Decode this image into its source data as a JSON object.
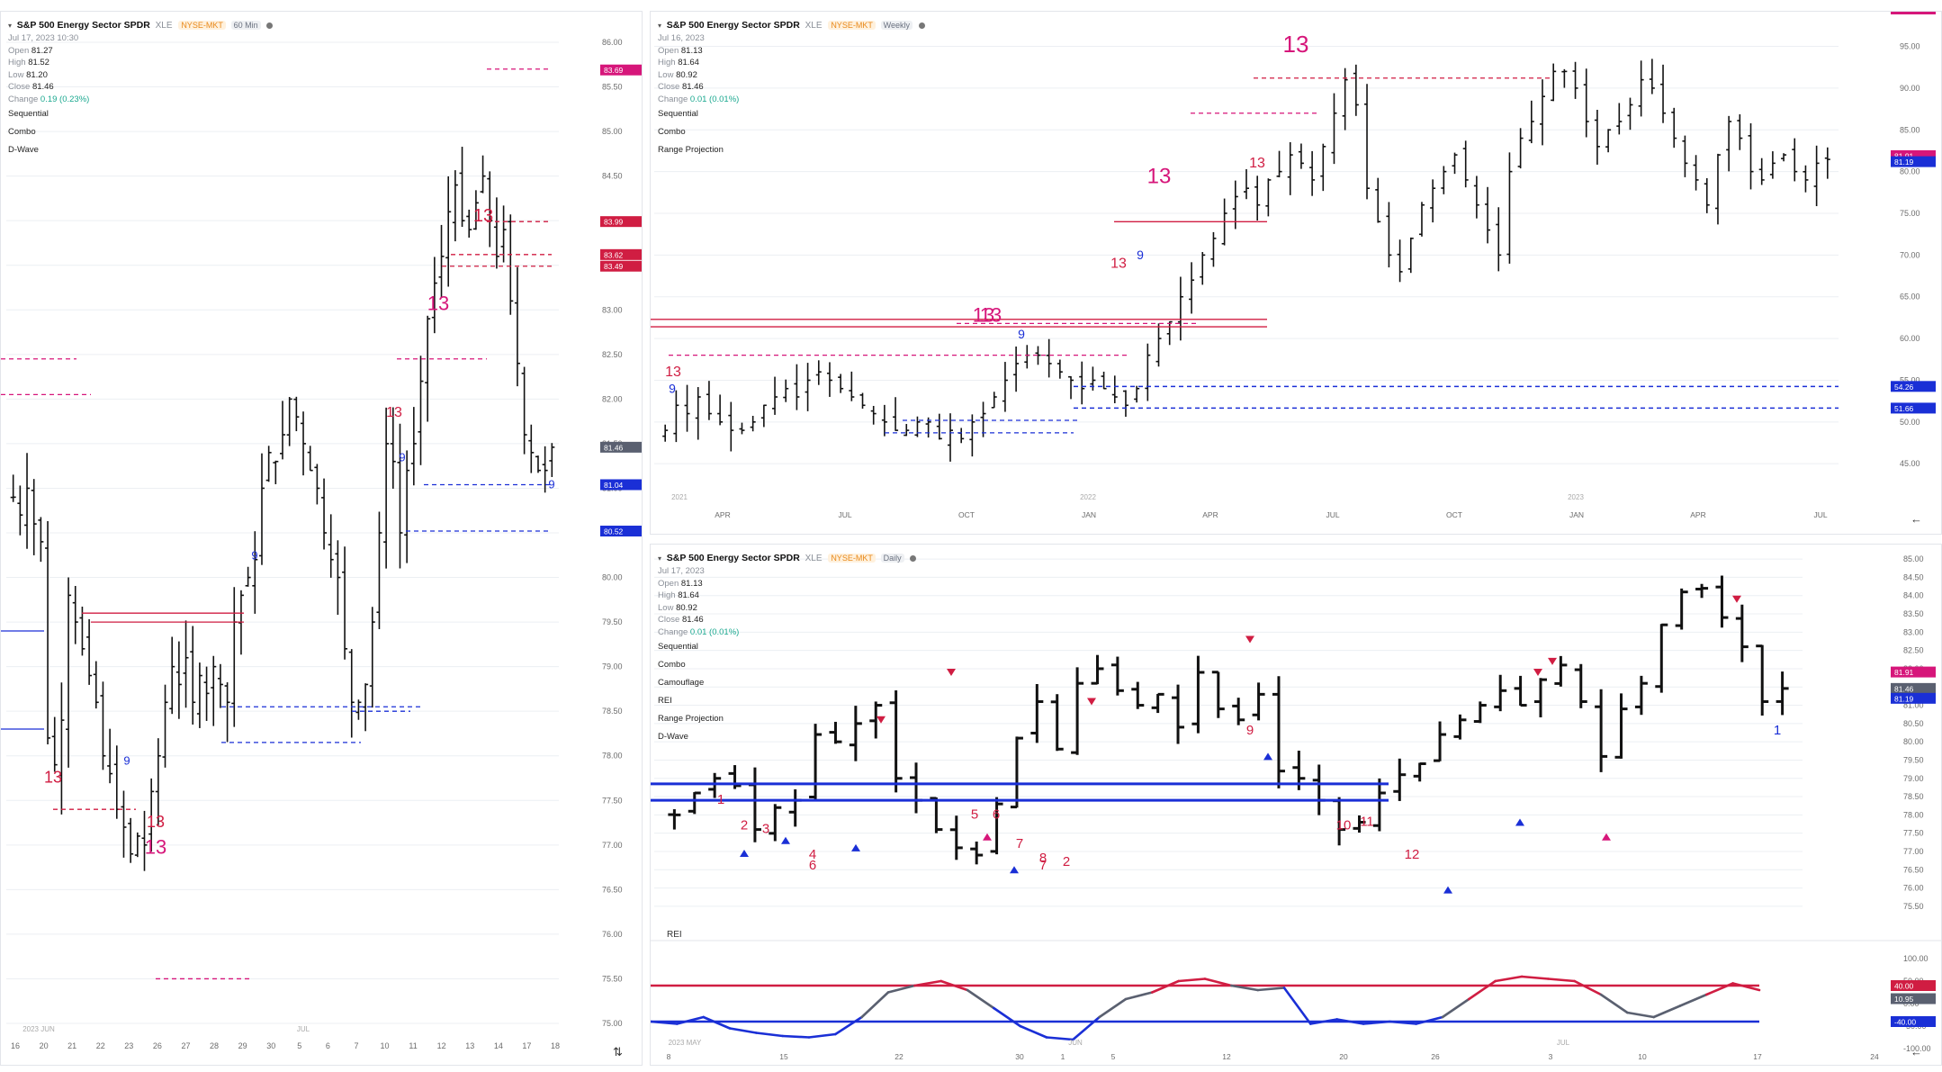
{
  "colors": {
    "bar": "#111111",
    "magenta": "#d6167a",
    "crimson": "#d01d42",
    "blue": "#1a2fd6",
    "gray": "#5a6070",
    "grid": "#eceff3",
    "axis_text": "#6b6b6b"
  },
  "pane_left": {
    "title": "S&P 500 Energy Sector SPDR",
    "ticker": "XLE",
    "exchange": "NYSE-MKT",
    "interval": "60 Min",
    "date": "Jul 17, 2023 10:30",
    "ohlc": [
      {
        "label": "Open",
        "value": "81.27"
      },
      {
        "label": "High",
        "value": "81.52"
      },
      {
        "label": "Low",
        "value": "81.20"
      },
      {
        "label": "Close",
        "value": "81.46"
      }
    ],
    "change_label": "Change",
    "change": "0.19 (0.23%)",
    "indicators": [
      "Sequential",
      "Combo",
      "D-Wave"
    ],
    "y_ticks": [
      "86.00",
      "85.50",
      "85.00",
      "84.50",
      "84.00",
      "83.50",
      "83.00",
      "82.50",
      "82.00",
      "81.50",
      "81.00",
      "80.50",
      "80.00",
      "79.50",
      "79.00",
      "78.50",
      "78.00",
      "77.50",
      "77.00",
      "76.50",
      "76.00",
      "75.50",
      "75.00"
    ],
    "x_ticks": [
      "16",
      "20",
      "21",
      "22",
      "23",
      "26",
      "27",
      "28",
      "29",
      "30",
      "5",
      "6",
      "7",
      "10",
      "11",
      "12",
      "13",
      "14",
      "17",
      "18"
    ],
    "period_labels": [
      "2023 JUN",
      "JUL"
    ],
    "price_tags": [
      {
        "value": "83.69",
        "color": "#d6167a"
      },
      {
        "value": "83.99",
        "color": "#d01d42"
      },
      {
        "value": "83.62",
        "color": "#d01d42"
      },
      {
        "value": "83.49",
        "color": "#d01d42"
      },
      {
        "value": "81.46",
        "color": "#5a6070"
      },
      {
        "value": "81.04",
        "color": "#1a2fd6"
      },
      {
        "value": "80.52",
        "color": "#1a2fd6"
      }
    ],
    "big_labels": [
      "13",
      "13",
      "13",
      "13",
      "13",
      "13"
    ],
    "nine_labels": [
      "9",
      "9",
      "9",
      "9"
    ],
    "sort_icon": "⇅"
  },
  "pane_weekly": {
    "title": "S&P 500 Energy Sector SPDR",
    "ticker": "XLE",
    "exchange": "NYSE-MKT",
    "interval": "Weekly",
    "date": "Jul 16, 2023",
    "ohlc": [
      {
        "label": "Open",
        "value": "81.13"
      },
      {
        "label": "High",
        "value": "81.64"
      },
      {
        "label": "Low",
        "value": "80.92"
      },
      {
        "label": "Close",
        "value": "81.46"
      }
    ],
    "change_label": "Change",
    "change": "0.01 (0.01%)",
    "indicators": [
      "Sequential",
      "Combo",
      "Range Projection"
    ],
    "y_ticks": [
      "95.00",
      "90.00",
      "85.00",
      "80.00",
      "75.00",
      "70.00",
      "65.00",
      "60.00",
      "55.00",
      "50.00",
      "45.00"
    ],
    "x_ticks": [
      "APR",
      "JUL",
      "OCT",
      "JAN",
      "APR",
      "JUL",
      "OCT",
      "JAN",
      "APR",
      "JUL"
    ],
    "year_labels": [
      "2021",
      "2022",
      "2023"
    ],
    "price_tags": [
      {
        "value": "81.91",
        "color": "#d6167a"
      },
      {
        "value": "81.19",
        "color": "#1a2fd6"
      },
      {
        "value": "54.26",
        "color": "#1a2fd6"
      },
      {
        "value": "51.66",
        "color": "#1a2fd6"
      }
    ],
    "big_labels": [
      "13",
      "13",
      "13",
      "13",
      "13",
      "13",
      "13"
    ],
    "nine_labels": [
      "9",
      "9",
      "9"
    ],
    "back_icon": "←"
  },
  "pane_daily": {
    "title": "S&P 500 Energy Sector SPDR",
    "ticker": "XLE",
    "exchange": "NYSE-MKT",
    "interval": "Daily",
    "date": "Jul 17, 2023",
    "ohlc": [
      {
        "label": "Open",
        "value": "81.13"
      },
      {
        "label": "High",
        "value": "81.64"
      },
      {
        "label": "Low",
        "value": "80.92"
      },
      {
        "label": "Close",
        "value": "81.46"
      }
    ],
    "change_label": "Change",
    "change": "0.01 (0.01%)",
    "indicators": [
      "Sequential",
      "Combo",
      "Camouflage",
      "REI",
      "Range Projection",
      "D-Wave"
    ],
    "y_ticks": [
      "85.00",
      "84.50",
      "84.00",
      "83.50",
      "83.00",
      "82.50",
      "82.00",
      "81.50",
      "81.00",
      "80.50",
      "80.00",
      "79.50",
      "79.00",
      "78.50",
      "78.00",
      "77.50",
      "77.00",
      "76.50",
      "76.00",
      "75.50"
    ],
    "price_tags": [
      {
        "value": "81.91",
        "color": "#d6167a"
      },
      {
        "value": "81.46",
        "color": "#5a6070"
      },
      {
        "value": "81.19",
        "color": "#1a2fd6"
      }
    ],
    "count_labels": [
      "1",
      "2",
      "3",
      "4",
      "6",
      "5",
      "6",
      "7",
      "8",
      "7",
      "2",
      "10",
      "11",
      "12",
      "9",
      "1"
    ],
    "rei": {
      "title": "REI",
      "y_ticks": [
        "100.00",
        "50.00",
        "0.00",
        "-50.00",
        "-100.00"
      ],
      "tags": [
        {
          "value": "40.00",
          "color": "#d01d42"
        },
        {
          "value": "10.95",
          "color": "#5a6070"
        },
        {
          "value": "-40.00",
          "color": "#1a2fd6"
        }
      ],
      "upper": 40,
      "lower": -40,
      "values": [
        -40,
        -45,
        -30,
        -55,
        -65,
        -72,
        -75,
        -68,
        -30,
        25,
        40,
        50,
        30,
        -10,
        -50,
        -75,
        -80,
        -30,
        10,
        25,
        50,
        55,
        40,
        30,
        35,
        -45,
        -35,
        -45,
        -40,
        -45,
        -30,
        10,
        50,
        60,
        55,
        50,
        20,
        -20,
        -30,
        -5,
        20,
        45,
        30
      ]
    },
    "x_ticks": [
      "8",
      "15",
      "22",
      "30",
      "1",
      "5",
      "12",
      "20",
      "26",
      "3",
      "10",
      "17",
      "24"
    ],
    "period_labels": [
      "2023 MAY",
      "JUN",
      "JUL"
    ],
    "back_icon": "←"
  },
  "chart_data": [
    {
      "type": "ohlc",
      "pane": "pane_left",
      "title": "S&P 500 Energy Sector SPDR XLE 60 Min",
      "ylim": [
        75.0,
        86.0
      ],
      "values_close": [
        80.9,
        80.7,
        81.0,
        80.6,
        80.4,
        78.2,
        77.9,
        78.4,
        79.8,
        79.5,
        79.2,
        78.9,
        78.6,
        78.0,
        77.8,
        77.4,
        77.2,
        76.9,
        77.1,
        77.0,
        77.6,
        78.0,
        78.6,
        79.0,
        78.8,
        79.1,
        78.6,
        78.9,
        78.7,
        79.0,
        78.8,
        78.6,
        79.5,
        79.8,
        80.0,
        80.2,
        81.0,
        81.4,
        81.3,
        81.6,
        82.0,
        81.8,
        81.5,
        81.2,
        81.0,
        80.5,
        80.2,
        80.0,
        79.2,
        78.6,
        78.6,
        78.8,
        79.5,
        80.5,
        81.5,
        81.3,
        80.5,
        81.2,
        81.5,
        82.2,
        82.9,
        83.3,
        83.6,
        84.1,
        84.4,
        84.0,
        83.9,
        84.2,
        84.5,
        84.0,
        83.6,
        83.9,
        83.1,
        82.4,
        81.6,
        81.4,
        81.2,
        81.2,
        81.46
      ]
    },
    {
      "type": "ohlc",
      "pane": "pane_weekly",
      "title": "S&P 500 Energy Sector SPDR XLE Weekly",
      "ylim": [
        42.0,
        97.0
      ],
      "values_close": [
        49,
        52,
        51,
        53,
        51,
        50,
        49,
        49,
        50,
        52,
        53,
        54,
        53,
        55,
        56,
        55,
        54,
        53,
        52,
        51,
        50,
        49,
        49,
        50,
        50,
        48,
        49,
        48,
        50,
        51,
        53,
        55,
        57,
        58,
        58,
        57,
        56,
        55,
        54,
        55,
        54,
        53,
        52,
        54,
        58,
        60,
        62,
        65,
        67,
        70,
        72,
        75,
        77,
        78,
        76,
        79,
        80,
        82,
        81,
        79,
        83,
        87,
        91,
        88,
        78,
        74,
        70,
        68,
        72,
        76,
        78,
        80,
        82,
        79,
        76,
        73,
        70,
        80,
        84,
        86,
        89,
        92,
        92,
        90,
        86,
        83,
        85,
        86,
        88,
        91,
        90,
        87,
        84,
        81,
        79,
        76,
        82,
        86,
        84,
        80,
        79,
        81,
        82,
        80,
        79,
        81,
        81.46
      ]
    },
    {
      "type": "ohlc",
      "pane": "pane_daily",
      "title": "S&P 500 Energy Sector SPDR XLE Daily",
      "ylim": [
        75.3,
        85.2
      ],
      "values_close": [
        78.0,
        78.6,
        79.0,
        78.8,
        77.6,
        78.2,
        78.4,
        80.2,
        80.0,
        80.5,
        81.0,
        79.0,
        78.4,
        77.6,
        77.1,
        76.9,
        78.3,
        80.1,
        81.1,
        79.8,
        81.6,
        82.0,
        81.4,
        81.0,
        81.3,
        80.4,
        81.9,
        80.9,
        80.6,
        81.3,
        79.2,
        79.0,
        78.4,
        77.6,
        77.8,
        78.6,
        79.1,
        79.4,
        80.2,
        80.6,
        81.0,
        81.4,
        81.0,
        81.7,
        82.1,
        81.1,
        79.6,
        80.9,
        81.6,
        83.2,
        84.1,
        84.2,
        83.4,
        82.6,
        81.1,
        81.46
      ],
      "rei_values": [
        -40,
        -45,
        -30,
        -55,
        -65,
        -72,
        -75,
        -68,
        -30,
        25,
        40,
        50,
        30,
        -10,
        -50,
        -75,
        -80,
        -30,
        10,
        25,
        50,
        55,
        40,
        30,
        35,
        -45,
        -35,
        -45,
        -40,
        -45,
        -30,
        10,
        50,
        60,
        55,
        50,
        20,
        -20,
        -30,
        -5,
        20,
        45,
        30
      ],
      "rei_ylim": [
        -100,
        100
      ]
    }
  ]
}
